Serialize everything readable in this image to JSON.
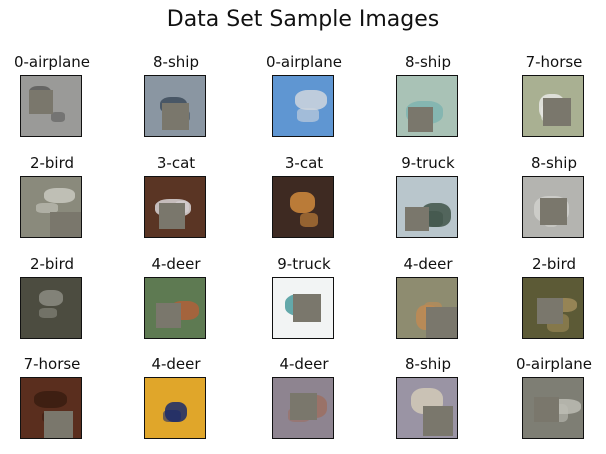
{
  "title": "Data Set Sample Images",
  "cells": [
    {
      "label": "0-airplane",
      "bg": "#9a9a98",
      "accent": "#5c5c5a",
      "patch": true
    },
    {
      "label": "8-ship",
      "bg": "#8a96a2",
      "accent": "#3d4c5c",
      "patch": true
    },
    {
      "label": "0-airplane",
      "bg": "#5f96d2",
      "accent": "#cfd6de",
      "patch": false
    },
    {
      "label": "8-ship",
      "bg": "#a9c2b6",
      "accent": "#7fb4b0",
      "patch": true
    },
    {
      "label": "7-horse",
      "bg": "#a9b092",
      "accent": "#e8e8e4",
      "patch": true
    },
    {
      "label": "2-bird",
      "bg": "#8a8a7c",
      "accent": "#c8c8c0",
      "patch": true
    },
    {
      "label": "3-cat",
      "bg": "#5a3524",
      "accent": "#d8d4d6",
      "patch": true
    },
    {
      "label": "3-cat",
      "bg": "#3e2a22",
      "accent": "#d08a3c",
      "patch": false
    },
    {
      "label": "9-truck",
      "bg": "#b9c6cc",
      "accent": "#405448",
      "patch": true
    },
    {
      "label": "8-ship",
      "bg": "#b4b4b0",
      "accent": "#d0d0cc",
      "patch": true
    },
    {
      "label": "2-bird",
      "bg": "#4c4c40",
      "accent": "#8c8c82",
      "patch": false
    },
    {
      "label": "4-deer",
      "bg": "#5e7a52",
      "accent": "#b0603a",
      "patch": true
    },
    {
      "label": "9-truck",
      "bg": "#f2f4f4",
      "accent": "#4a9a9c",
      "patch": true
    },
    {
      "label": "4-deer",
      "bg": "#8e8c70",
      "accent": "#c08a52",
      "patch": true
    },
    {
      "label": "2-bird",
      "bg": "#5c5a36",
      "accent": "#a08c5a",
      "patch": true
    },
    {
      "label": "7-horse",
      "bg": "#5a2e1e",
      "accent": "#3a1c10",
      "patch": true
    },
    {
      "label": "4-deer",
      "bg": "#e0a62a",
      "accent": "#1a2a6a",
      "patch": false
    },
    {
      "label": "4-deer",
      "bg": "#8e8490",
      "accent": "#9c6e62",
      "patch": true
    },
    {
      "label": "8-ship",
      "bg": "#9a94a4",
      "accent": "#d2cab8",
      "patch": true
    },
    {
      "label": "0-airplane",
      "bg": "#7e7e74",
      "accent": "#bcbcb4",
      "patch": true
    }
  ]
}
